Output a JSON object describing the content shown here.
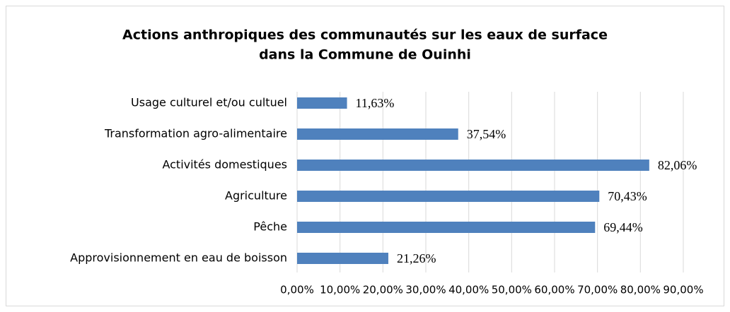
{
  "chart_data": {
    "type": "hbar",
    "title": [
      "Actions anthropiques des communautés sur les eaux de surface",
      "dans la Commune de Ouinhi"
    ],
    "categories": [
      "Usage culturel et/ou cultuel",
      "Transformation agro-alimentaire",
      "Activités domestiques",
      "Agriculture",
      "Pêche",
      "Approvisionnement en eau de boisson"
    ],
    "values": [
      11.63,
      37.54,
      82.06,
      70.43,
      69.44,
      21.26
    ],
    "value_labels": [
      "11,63%",
      "37,54%",
      "82,06%",
      "70,43%",
      "69,44%",
      "21,26%"
    ],
    "color": "#4f81bd",
    "xlim": [
      0,
      90
    ],
    "xticks": [
      {
        "value": 0,
        "label": "0,00%"
      },
      {
        "value": 10,
        "label": "10,00%"
      },
      {
        "value": 20,
        "label": "20,00%"
      },
      {
        "value": 30,
        "label": "30,00%"
      },
      {
        "value": 40,
        "label": "40,00%"
      },
      {
        "value": 50,
        "label": "50,00%"
      },
      {
        "value": 60,
        "label": "60,00%"
      },
      {
        "value": 70,
        "label": "70,00%"
      },
      {
        "value": 80,
        "label": "80,00%"
      },
      {
        "value": 90,
        "label": "90,00%"
      }
    ],
    "grid": true
  }
}
